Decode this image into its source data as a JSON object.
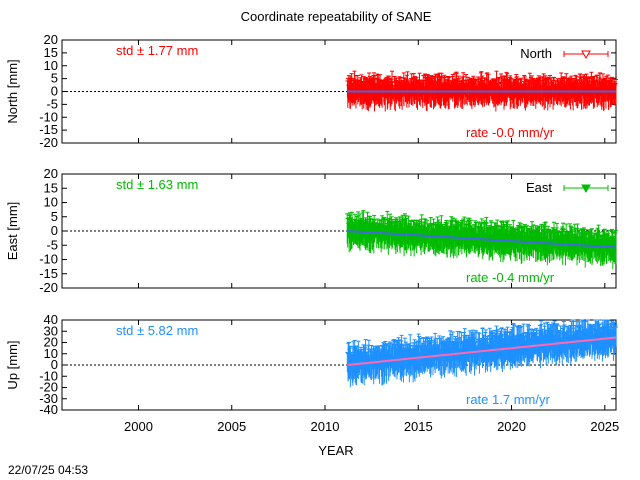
{
  "title": "Coordinate repeatability of SANE",
  "timestamp": "22/07/25 04:53",
  "chart_data": {
    "type": "scatter",
    "xlabel": "YEAR",
    "xlim": [
      1995.9,
      2025.6
    ],
    "xticks": [
      2000,
      2005,
      2010,
      2015,
      2020,
      2025
    ],
    "data_span": [
      2011.2,
      2025.6
    ],
    "panels": [
      {
        "id": "north",
        "ylabel": "North [mm]",
        "ylim": [
          -20,
          20
        ],
        "yticks": [
          20,
          15,
          10,
          5,
          0,
          -5,
          -10,
          -15,
          -20
        ],
        "series_name": "North",
        "legend": "North",
        "marker": "open-triangle-down",
        "color": "#ff0000",
        "trend_color": "#4169e1",
        "std_label": "std ± 1.77 mm",
        "rate_label": "rate -0.0 mm/yr",
        "rate": 0.0,
        "intercept_2011": 0.0,
        "scatter_amplitude": 5.0
      },
      {
        "id": "east",
        "ylabel": "East [mm]",
        "ylim": [
          -20,
          20
        ],
        "yticks": [
          20,
          15,
          10,
          5,
          0,
          -5,
          -10,
          -15,
          -20
        ],
        "series_name": "East",
        "legend": "East",
        "marker": "filled-triangle-down",
        "color": "#00bb00",
        "trend_color": "#4169e1",
        "std_label": "std ± 1.63 mm",
        "rate_label": "rate -0.4 mm/yr",
        "rate": -0.4,
        "intercept_2011": 0.0,
        "scatter_amplitude": 5.0
      },
      {
        "id": "up",
        "ylabel": "Up [mm]",
        "ylim": [
          -40,
          40
        ],
        "yticks": [
          40,
          30,
          20,
          10,
          0,
          -10,
          -20,
          -30,
          -40
        ],
        "series_name": "",
        "legend": "",
        "marker": "x",
        "color": "#1e90ff",
        "trend_color": "#ff69b4",
        "std_label": "std ± 5.82 mm",
        "rate_label": "rate  1.7 mm/yr",
        "rate": 1.7,
        "intercept_2011": 0.0,
        "scatter_amplitude": 14.0
      }
    ]
  }
}
